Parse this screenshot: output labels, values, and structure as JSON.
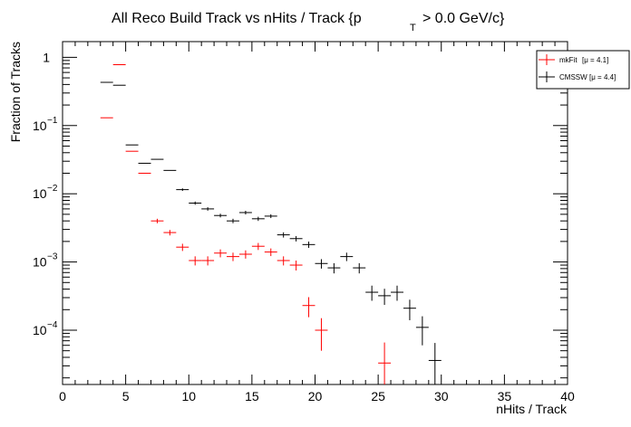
{
  "chart_data": {
    "type": "scatter",
    "title": {
      "main": "All Reco Build Track vs nHits / Track {p",
      "sub": "T",
      "tail": "> 0.0 GeV/c}"
    },
    "xlabel": "nHits / Track",
    "ylabel": "Fraction of Tracks",
    "xlim": [
      0,
      40
    ],
    "ylim": [
      1.6e-05,
      1.7
    ],
    "yscale": "log",
    "grid": false,
    "legend_position": "top-right",
    "x_ticks": [
      {
        "value": 0,
        "label": "0"
      },
      {
        "value": 5,
        "label": "5"
      },
      {
        "value": 10,
        "label": "10"
      },
      {
        "value": 15,
        "label": "15"
      },
      {
        "value": 20,
        "label": "20"
      },
      {
        "value": 25,
        "label": "25"
      },
      {
        "value": 30,
        "label": "30"
      },
      {
        "value": 35,
        "label": "35"
      },
      {
        "value": 40,
        "label": "40"
      }
    ],
    "y_ticks": [
      {
        "value": 1,
        "base": "1",
        "exp": ""
      },
      {
        "value": 0.1,
        "base": "10",
        "exp": "−1"
      },
      {
        "value": 0.01,
        "base": "10",
        "exp": "−2"
      },
      {
        "value": 0.001,
        "base": "10",
        "exp": "−3"
      },
      {
        "value": 0.0001,
        "base": "10",
        "exp": "−4"
      }
    ],
    "series": [
      {
        "name": "mkFit",
        "mean_label": "[μ = 4.1]",
        "color": "#ff0000",
        "points": [
          {
            "x": 3.5,
            "y": 0.13,
            "err": 0
          },
          {
            "x": 4.5,
            "y": 0.78,
            "err": 0
          },
          {
            "x": 5.5,
            "y": 0.042,
            "err": 0
          },
          {
            "x": 6.5,
            "y": 0.02,
            "err": 0
          },
          {
            "x": 7.5,
            "y": 0.004,
            "err": 0.0003
          },
          {
            "x": 8.5,
            "y": 0.0027,
            "err": 0.00025
          },
          {
            "x": 9.5,
            "y": 0.00165,
            "err": 0.0002
          },
          {
            "x": 10.5,
            "y": 0.00105,
            "err": 0.00016
          },
          {
            "x": 11.5,
            "y": 0.00105,
            "err": 0.00016
          },
          {
            "x": 12.5,
            "y": 0.00135,
            "err": 0.00018
          },
          {
            "x": 13.5,
            "y": 0.0012,
            "err": 0.00017
          },
          {
            "x": 14.5,
            "y": 0.0013,
            "err": 0.00018
          },
          {
            "x": 15.5,
            "y": 0.0017,
            "err": 0.0002
          },
          {
            "x": 16.5,
            "y": 0.0014,
            "err": 0.00018
          },
          {
            "x": 17.5,
            "y": 0.00105,
            "err": 0.00016
          },
          {
            "x": 18.5,
            "y": 0.0009,
            "err": 0.00015
          },
          {
            "x": 19.5,
            "y": 0.00023,
            "err": 7.5e-05
          },
          {
            "x": 20.5,
            "y": 0.0001,
            "err": 5e-05
          },
          {
            "x": 25.5,
            "y": 3.3e-05,
            "err": 3.3e-05
          }
        ]
      },
      {
        "name": "CMSSW",
        "mean_label": "[μ = 4.4]",
        "color": "#000000",
        "points": [
          {
            "x": 3.5,
            "y": 0.43,
            "err": 0
          },
          {
            "x": 4.5,
            "y": 0.39,
            "err": 0
          },
          {
            "x": 5.5,
            "y": 0.052,
            "err": 0
          },
          {
            "x": 6.5,
            "y": 0.028,
            "err": 0
          },
          {
            "x": 7.5,
            "y": 0.032,
            "err": 0
          },
          {
            "x": 8.5,
            "y": 0.022,
            "err": 0
          },
          {
            "x": 9.5,
            "y": 0.0115,
            "err": 0.0005
          },
          {
            "x": 10.5,
            "y": 0.0073,
            "err": 0.0004
          },
          {
            "x": 11.5,
            "y": 0.006,
            "err": 0.00035
          },
          {
            "x": 12.5,
            "y": 0.0048,
            "err": 0.0003
          },
          {
            "x": 13.5,
            "y": 0.004,
            "err": 0.0003
          },
          {
            "x": 14.5,
            "y": 0.0053,
            "err": 0.00033
          },
          {
            "x": 15.5,
            "y": 0.0043,
            "err": 0.0003
          },
          {
            "x": 16.5,
            "y": 0.0047,
            "err": 0.0003
          },
          {
            "x": 17.5,
            "y": 0.0025,
            "err": 0.00022
          },
          {
            "x": 18.5,
            "y": 0.0022,
            "err": 0.0002
          },
          {
            "x": 19.5,
            "y": 0.0018,
            "err": 0.00019
          },
          {
            "x": 20.5,
            "y": 0.00095,
            "err": 0.00015
          },
          {
            "x": 21.5,
            "y": 0.00082,
            "err": 0.00014
          },
          {
            "x": 22.5,
            "y": 0.0012,
            "err": 0.00017
          },
          {
            "x": 23.5,
            "y": 0.00082,
            "err": 0.00014
          },
          {
            "x": 24.5,
            "y": 0.00036,
            "err": 9e-05
          },
          {
            "x": 25.5,
            "y": 0.00032,
            "err": 8.5e-05
          },
          {
            "x": 26.5,
            "y": 0.00036,
            "err": 9e-05
          },
          {
            "x": 27.5,
            "y": 0.00021,
            "err": 7e-05
          },
          {
            "x": 28.5,
            "y": 0.00011,
            "err": 5e-05
          },
          {
            "x": 29.5,
            "y": 3.6e-05,
            "err": 2.9e-05
          }
        ]
      }
    ]
  }
}
